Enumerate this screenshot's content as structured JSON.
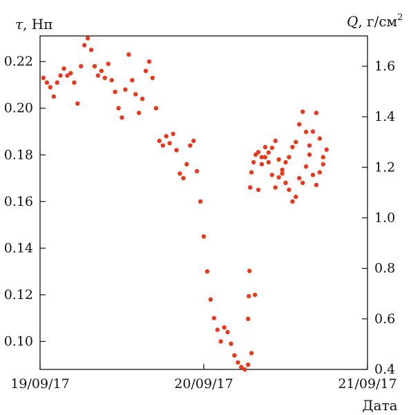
{
  "chart_data": {
    "type": "scatter",
    "title": "",
    "marker_color": "#e8391d",
    "xlabel": "Дата",
    "x_ticks": [
      "19/09/17",
      "20/09/17",
      "21/09/17"
    ],
    "xlim": [
      "19/09/17",
      "21/09/17"
    ],
    "y_left": {
      "label_symbol": "τ",
      "label_unit": ", Нп",
      "ylim": [
        0.088,
        0.231
      ],
      "ticks": [
        "0.10",
        "0.12",
        "0.14",
        "0.16",
        "0.18",
        "0.20",
        "0.22"
      ],
      "tick_values": [
        0.1,
        0.12,
        0.14,
        0.16,
        0.18,
        0.2,
        0.22
      ]
    },
    "y_right": {
      "label_symbol": "Q",
      "label_unit": ", г/см",
      "label_sup": "2",
      "ylim": [
        0.4,
        1.72
      ],
      "ticks": [
        "0.4",
        "0.6",
        "0.8",
        "1.0",
        "1.2",
        "1.4",
        "1.6"
      ],
      "tick_values": [
        0.4,
        0.6,
        0.8,
        1.0,
        1.2,
        1.4,
        1.6
      ]
    },
    "series": [
      {
        "axis": "left",
        "x_hours": [
          0.5,
          1,
          1.5,
          2,
          2.5,
          3,
          3.5,
          4,
          4.5,
          5,
          5.5,
          6,
          6.5,
          7,
          7.5,
          8,
          8.5,
          9,
          9.5,
          10,
          10.5,
          11,
          11.5,
          12,
          12.5,
          13,
          13.5,
          14,
          14.5,
          15,
          15.5,
          16,
          16.5,
          17,
          17.5,
          18,
          18.5,
          19,
          19.5,
          20,
          20.5,
          21,
          21.5,
          22,
          22.5,
          23,
          23.5,
          24,
          24.5,
          25,
          25.5,
          26,
          26.5,
          27,
          27.5,
          28,
          28.5,
          29,
          29.5,
          30,
          30.5,
          31,
          31.5,
          32,
          32.5,
          33,
          33.5,
          34,
          34.5,
          35,
          35.5,
          36,
          36.5,
          37,
          37.5,
          38,
          38.5,
          39,
          39.5,
          40,
          40.5,
          41,
          41.5
        ],
        "values": [
          0.213,
          0.211,
          0.209,
          0.205,
          0.211,
          0.214,
          0.217,
          0.214,
          0.215,
          0.211,
          0.202,
          0.218,
          0.227,
          0.23,
          0.225,
          0.218,
          0.214,
          0.216,
          0.213,
          0.219,
          0.212,
          0.207,
          0.2,
          0.196,
          0.208,
          0.223,
          0.212,
          0.206,
          0.198,
          0.204,
          0.216,
          0.22,
          0.213,
          0.2,
          0.186,
          0.184,
          0.188,
          0.185,
          0.189,
          0.182,
          0.172,
          0.17,
          0.176,
          0.184,
          0.186,
          0.173,
          0.16,
          0.145,
          0.13,
          0.118,
          0.11,
          0.105,
          0.1,
          0.106,
          0.104,
          0.099,
          0.094,
          0.091,
          0.089,
          0.088,
          0.09,
          0.095,
          0.12,
          0.165,
          0.176,
          0.179,
          0.181,
          0.183,
          0.186,
          0.178,
          0.172,
          0.168,
          0.165,
          0.16,
          0.162,
          0.17,
          0.168,
          0.175,
          0.184,
          0.19,
          0.198,
          0.187,
          0.176
        ]
      },
      {
        "axis": "right",
        "x_hours": [
          30.5,
          30.6,
          30.7,
          30.8,
          31.0,
          31.3,
          31.6,
          32.0,
          32.5,
          33.0,
          33.5,
          34.0,
          34.5,
          35.0,
          35.5,
          36.0,
          36.5,
          37.0,
          37.5,
          38.0,
          38.5,
          39.0,
          39.5,
          40.0,
          40.5,
          41.0,
          41.5,
          42.0
        ],
        "values": [
          0.6,
          0.69,
          0.79,
          1.12,
          1.18,
          1.22,
          1.25,
          1.26,
          1.24,
          1.28,
          1.22,
          1.17,
          1.12,
          1.16,
          1.19,
          1.22,
          1.24,
          1.28,
          1.3,
          1.37,
          1.42,
          1.34,
          1.25,
          1.17,
          1.13,
          1.18,
          1.24,
          1.27
        ]
      }
    ]
  }
}
